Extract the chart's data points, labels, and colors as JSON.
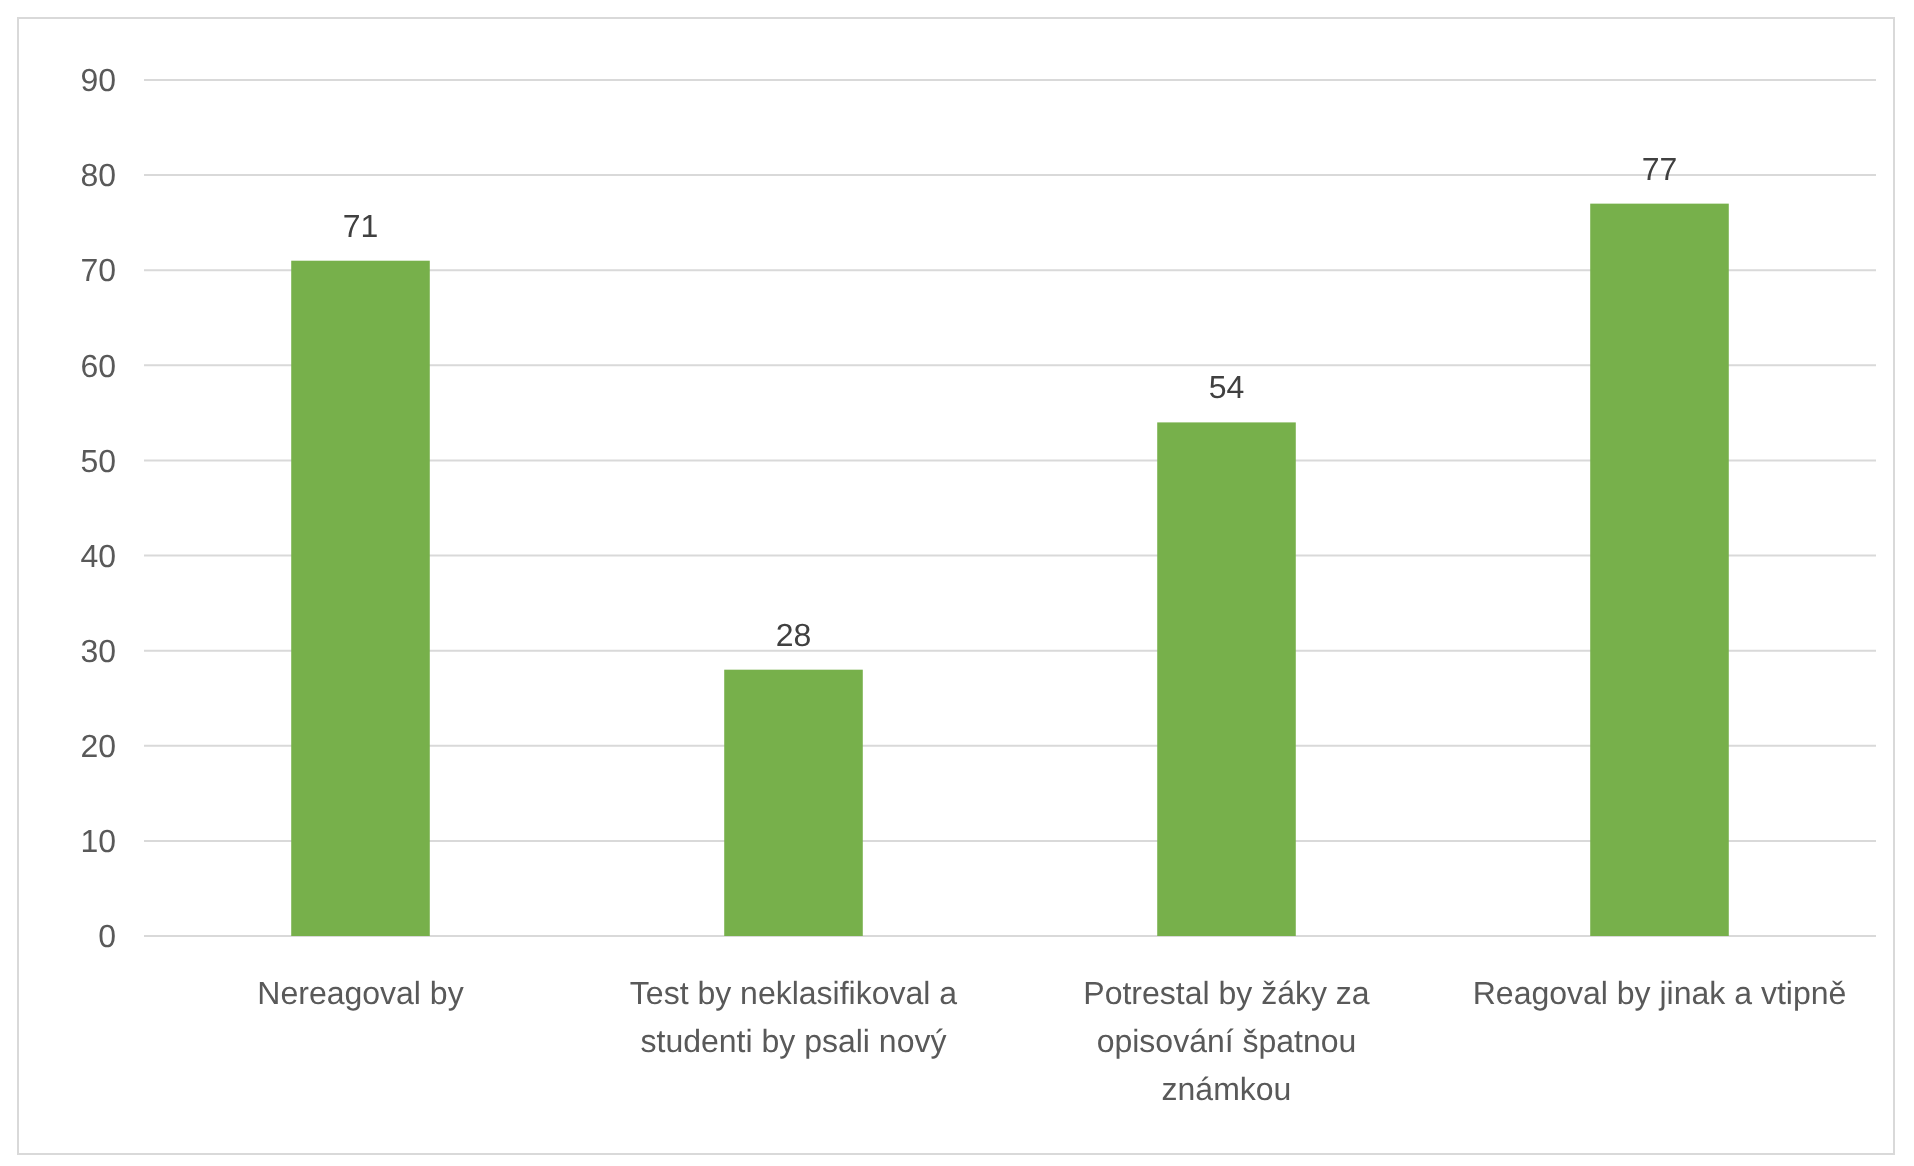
{
  "chart_data": {
    "type": "bar",
    "categories": [
      "Nereagoval by",
      "Test by neklasifikoval a studenti by psali nový",
      "Potrestal by žáky za opisování špatnou známkou",
      "Reagoval by jinak a vtipně"
    ],
    "values": [
      71,
      28,
      54,
      77
    ],
    "color": "#77b04b",
    "ylim": [
      0,
      90
    ],
    "yticks": [
      0,
      10,
      20,
      30,
      40,
      50,
      60,
      70,
      80,
      90
    ],
    "grid": "y",
    "data_labels": true
  }
}
